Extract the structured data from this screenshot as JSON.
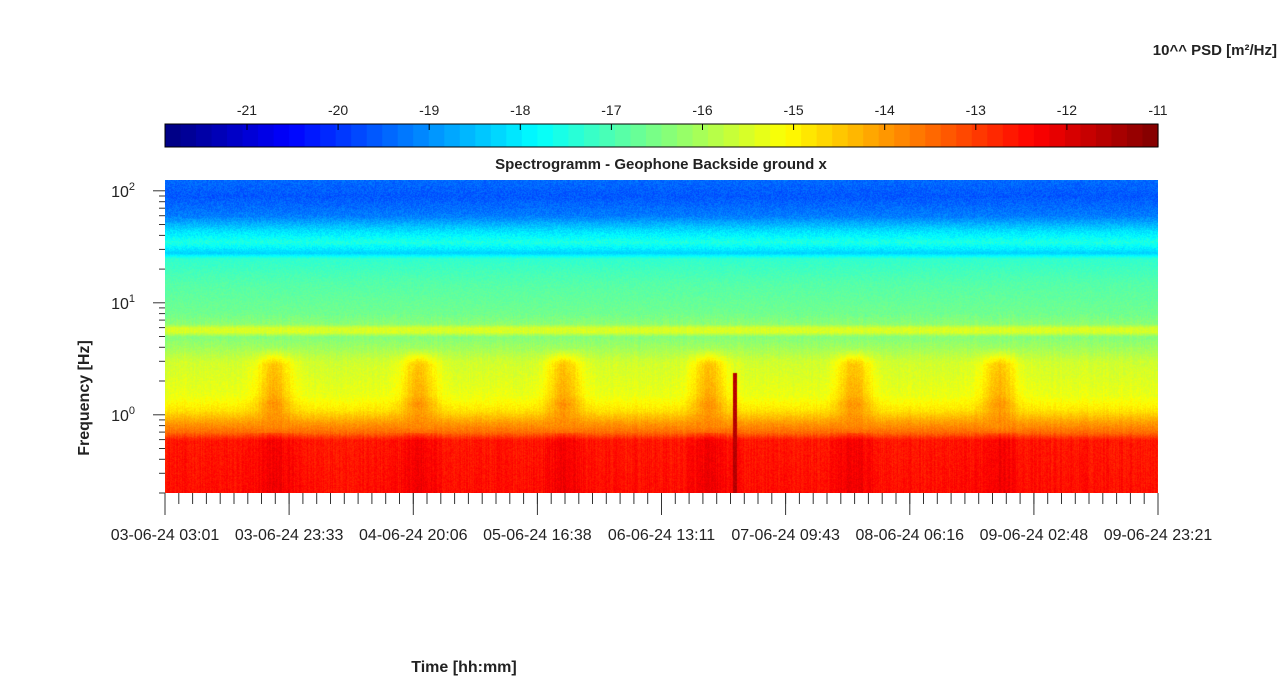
{
  "chart_data": {
    "type": "heatmap",
    "title": "Spectrogramm - Geophone Backside ground x",
    "xlabel": "Time [hh:mm]",
    "ylabel": "Frequency [Hz]",
    "x_tick_labels": [
      "03-06-24  03:01",
      "03-06-24  23:33",
      "04-06-24  20:06",
      "05-06-24  16:38",
      "06-06-24  13:11",
      "07-06-24  09:43",
      "08-06-24  06:16",
      "09-06-24  02:48",
      "09-06-24  23:21"
    ],
    "y_scale": "log",
    "y_tick_exponents": [
      0,
      1,
      2
    ],
    "y_range_hz": [
      0.2,
      125
    ],
    "colorbar": {
      "label": "10^^ PSD [m²/Hz]",
      "tick_labels": [
        "-21",
        "-20",
        "-19",
        "-18",
        "-17",
        "-16",
        "-15",
        "-14",
        "-13",
        "-12",
        "-11"
      ],
      "min": -21.9,
      "max": -11,
      "colormap": "jet",
      "levels": 64
    },
    "frequency_profile": {
      "freq_hz": [
        0.2,
        0.6,
        0.7,
        0.85,
        1.1,
        1.5,
        3,
        4,
        5,
        5.5,
        6,
        6.5,
        8,
        15,
        25,
        28,
        35,
        45,
        60,
        90,
        125
      ],
      "psd_log10": [
        -12.5,
        -12.6,
        -13.5,
        -14.0,
        -14.8,
        -15.3,
        -15.6,
        -16.1,
        -16.4,
        -15.5,
        -15.5,
        -16.3,
        -16.6,
        -16.9,
        -17.3,
        -18.3,
        -17.5,
        -18.2,
        -19.2,
        -19.6,
        -19.4
      ]
    },
    "daytime_activity_centers_days": [
      0.75,
      1.75,
      2.75,
      3.75,
      4.75,
      5.75
    ],
    "daytime_activity_band_hz": [
      1,
      4
    ],
    "transient_event": {
      "time_days": 3.93,
      "freq_hz": [
        0.2,
        2.4
      ]
    },
    "grid": false
  }
}
